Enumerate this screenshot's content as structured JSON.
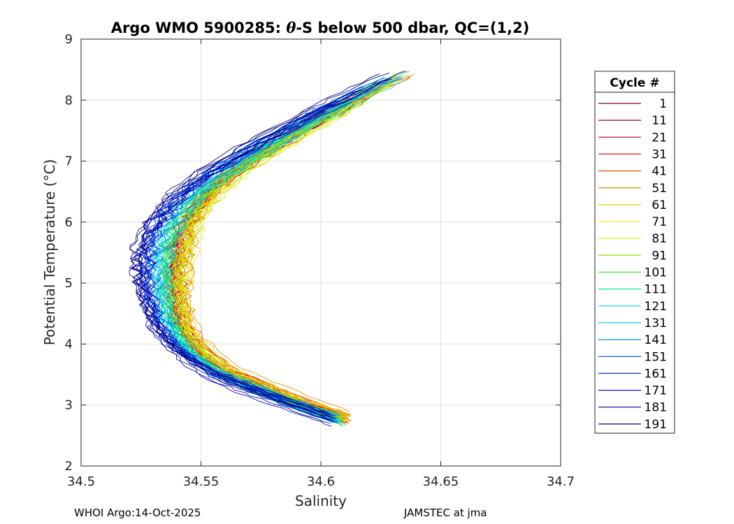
{
  "chart_data": {
    "type": "line",
    "title": "Argo WMO 5900285: θ-S below 500 dbar,  QC=(1,2)",
    "title_prefix": "Argo WMO 5900285: ",
    "title_theta": "θ",
    "title_suffix": "-S below 500 dbar,  QC=(1,2)",
    "xlabel": "Salinity",
    "ylabel": "Potential Temperature (°C)",
    "xlim": [
      34.5,
      34.7
    ],
    "ylim": [
      2,
      9
    ],
    "xticks": [
      34.5,
      34.55,
      34.6,
      34.65,
      34.7
    ],
    "xtick_labels": [
      "34.5",
      "34.55",
      "34.6",
      "34.65",
      "34.7"
    ],
    "yticks": [
      2,
      3,
      4,
      5,
      6,
      7,
      8,
      9
    ],
    "ytick_labels": [
      "2",
      "3",
      "4",
      "5",
      "6",
      "7",
      "8",
      "9"
    ],
    "grid": true,
    "legend_title": "Cycle #",
    "legend_position": "right-outside",
    "series_shape": {
      "description": "Representative theta-S profile shared by all cycles (salinity vs potential temperature)",
      "theta": [
        2.75,
        2.9,
        3.1,
        3.3,
        3.5,
        3.8,
        4.1,
        4.4,
        4.7,
        5.0,
        5.3,
        5.6,
        5.9,
        6.2,
        6.5,
        6.8,
        7.1,
        7.4,
        7.7,
        8.0,
        8.3,
        8.5
      ],
      "salinity": [
        34.608,
        34.597,
        34.583,
        34.57,
        34.558,
        34.547,
        34.54,
        34.536,
        34.534,
        34.533,
        34.533,
        34.534,
        34.537,
        34.542,
        34.549,
        34.559,
        34.571,
        34.584,
        34.598,
        34.612,
        34.628,
        34.64
      ]
    },
    "series": [
      {
        "name": "1",
        "color": "#800000",
        "s_offset": 0.003,
        "t_offset": 0.0
      },
      {
        "name": "11",
        "color": "#a50000",
        "s_offset": 0.004,
        "t_offset": -0.05
      },
      {
        "name": "21",
        "color": "#c80000",
        "s_offset": 0.005,
        "t_offset": 0.03
      },
      {
        "name": "31",
        "color": "#e60000",
        "s_offset": 0.004,
        "t_offset": 0.02
      },
      {
        "name": "41",
        "color": "#e64600",
        "s_offset": 0.006,
        "t_offset": 0.05
      },
      {
        "name": "51",
        "color": "#e68c00",
        "s_offset": 0.007,
        "t_offset": 0.08
      },
      {
        "name": "61",
        "color": "#e6c800",
        "s_offset": 0.008,
        "t_offset": 0.04
      },
      {
        "name": "71",
        "color": "#f0e600",
        "s_offset": 0.007,
        "t_offset": 0.0
      },
      {
        "name": "81",
        "color": "#c8f000",
        "s_offset": 0.006,
        "t_offset": -0.03
      },
      {
        "name": "91",
        "color": "#82f000",
        "s_offset": 0.004,
        "t_offset": 0.02
      },
      {
        "name": "101",
        "color": "#32f032",
        "s_offset": 0.003,
        "t_offset": 0.0
      },
      {
        "name": "111",
        "color": "#00f096",
        "s_offset": 0.002,
        "t_offset": -0.02
      },
      {
        "name": "121",
        "color": "#00e6d2",
        "s_offset": 0.001,
        "t_offset": 0.03
      },
      {
        "name": "131",
        "color": "#00c8f0",
        "s_offset": 0.0,
        "t_offset": -0.01
      },
      {
        "name": "141",
        "color": "#0096e6",
        "s_offset": -0.002,
        "t_offset": 0.02
      },
      {
        "name": "151",
        "color": "#0064e6",
        "s_offset": -0.003,
        "t_offset": 0.05
      },
      {
        "name": "161",
        "color": "#0032dc",
        "s_offset": -0.004,
        "t_offset": 0.0
      },
      {
        "name": "171",
        "color": "#0000c8",
        "s_offset": -0.005,
        "t_offset": -0.04
      },
      {
        "name": "181",
        "color": "#000096",
        "s_offset": -0.006,
        "t_offset": 0.03
      },
      {
        "name": "191",
        "color": "#00008c",
        "s_offset": -0.007,
        "t_offset": 0.06
      }
    ]
  },
  "footer": {
    "left": "WHOI Argo:14-Oct-2025",
    "right": "JAMSTEC at jma"
  }
}
